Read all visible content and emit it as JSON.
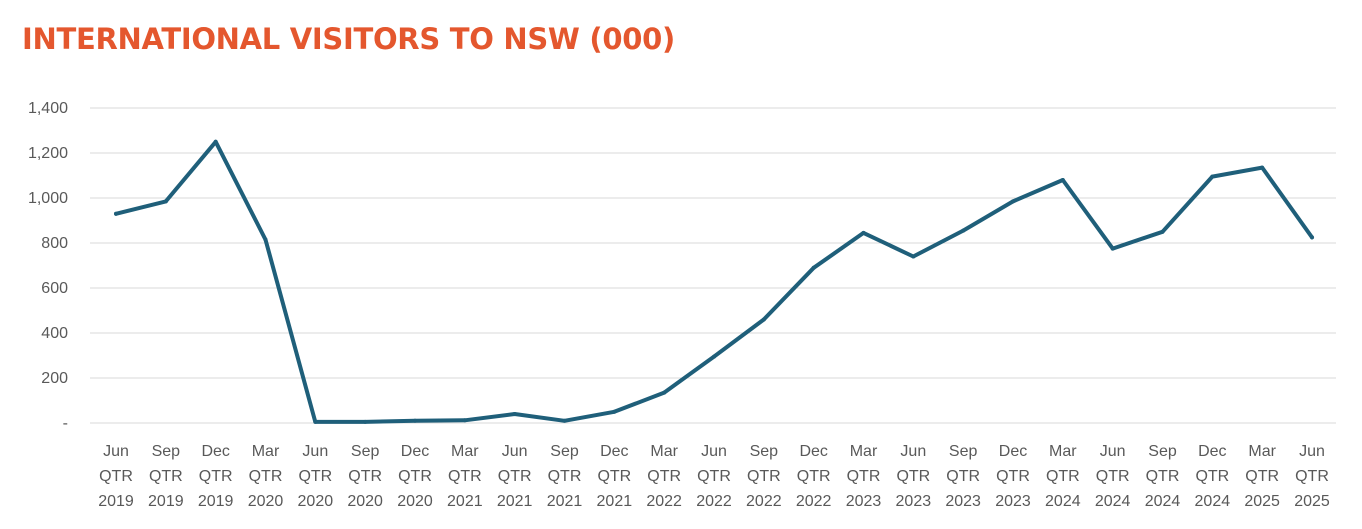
{
  "chart_data": {
    "type": "line",
    "title": "INTERNATIONAL VISITORS TO NSW (000)",
    "xlabel": "",
    "ylabel": "",
    "ylim": [
      0,
      1400
    ],
    "yticks": [
      0,
      200,
      400,
      600,
      800,
      1000,
      1200,
      1400
    ],
    "ytick_labels": [
      "-",
      "200",
      "400",
      "600",
      "800",
      "1,000",
      "1,200",
      "1,400"
    ],
    "grid": "horizontal",
    "legend": "none",
    "line_color": "#1F5F7A",
    "categories": [
      [
        "Jun",
        "QTR",
        "2019"
      ],
      [
        "Sep",
        "QTR",
        "2019"
      ],
      [
        "Dec",
        "QTR",
        "2019"
      ],
      [
        "Mar",
        "QTR",
        "2020"
      ],
      [
        "Jun",
        "QTR",
        "2020"
      ],
      [
        "Sep",
        "QTR",
        "2020"
      ],
      [
        "Dec",
        "QTR",
        "2020"
      ],
      [
        "Mar",
        "QTR",
        "2021"
      ],
      [
        "Jun",
        "QTR",
        "2021"
      ],
      [
        "Sep",
        "QTR",
        "2021"
      ],
      [
        "Dec",
        "QTR",
        "2021"
      ],
      [
        "Mar",
        "QTR",
        "2022"
      ],
      [
        "Jun",
        "QTR",
        "2022"
      ],
      [
        "Sep",
        "QTR",
        "2022"
      ],
      [
        "Dec",
        "QTR",
        "2022"
      ],
      [
        "Mar",
        "QTR",
        "2023"
      ],
      [
        "Jun",
        "QTR",
        "2023"
      ],
      [
        "Sep",
        "QTR",
        "2023"
      ],
      [
        "Dec",
        "QTR",
        "2023"
      ],
      [
        "Mar",
        "QTR",
        "2024"
      ],
      [
        "Jun",
        "QTR",
        "2024"
      ],
      [
        "Sep",
        "QTR",
        "2024"
      ],
      [
        "Dec",
        "QTR",
        "2024"
      ],
      [
        "Mar",
        "QTR",
        "2025"
      ],
      [
        "Jun",
        "QTR",
        "2025"
      ]
    ],
    "values": [
      930,
      985,
      1250,
      815,
      5,
      5,
      10,
      12,
      40,
      10,
      50,
      135,
      295,
      460,
      690,
      845,
      740,
      855,
      985,
      1080,
      775,
      850,
      1095,
      1135,
      825
    ]
  },
  "colors": {
    "title": "#E4572E",
    "grid": "#D9D9D9",
    "text": "#595959"
  }
}
